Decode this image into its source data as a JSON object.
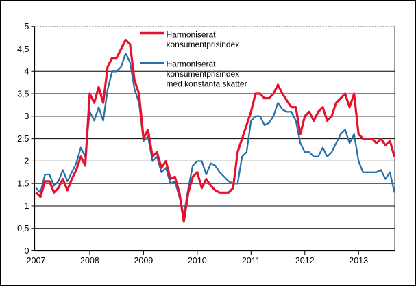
{
  "figure": {
    "background": "#ffffff",
    "outer_border_color": "#000000",
    "grid_color": "#000000",
    "top_border_color": "#8c8c8c"
  },
  "legend": [
    {
      "series": "hicp",
      "color": "#e8112d",
      "label_lines": [
        "Harmoniserat",
        "konsumentprisindex"
      ]
    },
    {
      "series": "hicp_ct",
      "color": "#2a6fa8",
      "label_lines": [
        "Harmoniserat",
        "konsumentprisindex",
        "med konstanta skatter"
      ]
    }
  ],
  "chart_data": {
    "type": "line",
    "title": "",
    "xlabel": "",
    "ylabel": "",
    "grid": true,
    "legend_position": "inside-top-center",
    "ylim": [
      0,
      5
    ],
    "y_tick_step": 0.5,
    "y_tick_labels": [
      "0",
      "0,5",
      "1",
      "1,5",
      "2",
      "2,5",
      "3",
      "3,5",
      "4",
      "4,5",
      "5"
    ],
    "x_tick_labels": [
      "2007",
      "2008",
      "2009",
      "2010",
      "2011",
      "2012",
      "2013"
    ],
    "x_monthly_start": "2007-01",
    "x_monthly_end": "2013-09",
    "series": [
      {
        "name": "Harmoniserat konsumentprisindex",
        "color": "#e8112d",
        "line_width": 3.2,
        "values": [
          1.3,
          1.2,
          1.55,
          1.55,
          1.3,
          1.4,
          1.6,
          1.35,
          1.6,
          1.8,
          2.1,
          1.9,
          3.5,
          3.3,
          3.65,
          3.3,
          4.1,
          4.3,
          4.3,
          4.5,
          4.7,
          4.6,
          3.8,
          3.5,
          2.5,
          2.7,
          2.1,
          2.2,
          1.85,
          2.0,
          1.6,
          1.65,
          1.3,
          0.65,
          1.3,
          1.65,
          1.75,
          1.4,
          1.6,
          1.45,
          1.35,
          1.3,
          1.3,
          1.3,
          1.4,
          2.2,
          2.5,
          2.8,
          3.1,
          3.5,
          3.5,
          3.4,
          3.4,
          3.5,
          3.7,
          3.5,
          3.35,
          3.2,
          3.2,
          2.6,
          3.0,
          3.1,
          2.9,
          3.1,
          3.2,
          2.9,
          3.0,
          3.3,
          3.4,
          3.5,
          3.2,
          3.5,
          2.6,
          2.5,
          2.5,
          2.5,
          2.4,
          2.5,
          2.35,
          2.45,
          2.1
        ]
      },
      {
        "name": "Harmoniserat konsumentprisindex med konstanta skatter",
        "color": "#2a6fa8",
        "line_width": 2.3,
        "values": [
          1.4,
          1.3,
          1.7,
          1.7,
          1.45,
          1.55,
          1.8,
          1.55,
          1.75,
          1.95,
          2.3,
          2.1,
          3.1,
          2.9,
          3.2,
          2.9,
          3.6,
          4.0,
          4.0,
          4.1,
          4.4,
          4.2,
          3.6,
          3.3,
          2.45,
          2.55,
          2.0,
          2.1,
          1.75,
          1.85,
          1.5,
          1.55,
          1.2,
          0.8,
          1.4,
          1.9,
          2.0,
          2.0,
          1.7,
          1.95,
          1.9,
          1.75,
          1.65,
          1.55,
          1.5,
          1.5,
          2.1,
          2.2,
          2.9,
          3.0,
          3.0,
          2.8,
          2.85,
          3.0,
          3.3,
          3.15,
          3.1,
          3.1,
          2.9,
          2.4,
          2.2,
          2.2,
          2.1,
          2.1,
          2.3,
          2.1,
          2.2,
          2.4,
          2.6,
          2.7,
          2.4,
          2.6,
          2.0,
          1.75,
          1.75,
          1.75,
          1.75,
          1.8,
          1.6,
          1.75,
          1.3
        ]
      }
    ]
  }
}
